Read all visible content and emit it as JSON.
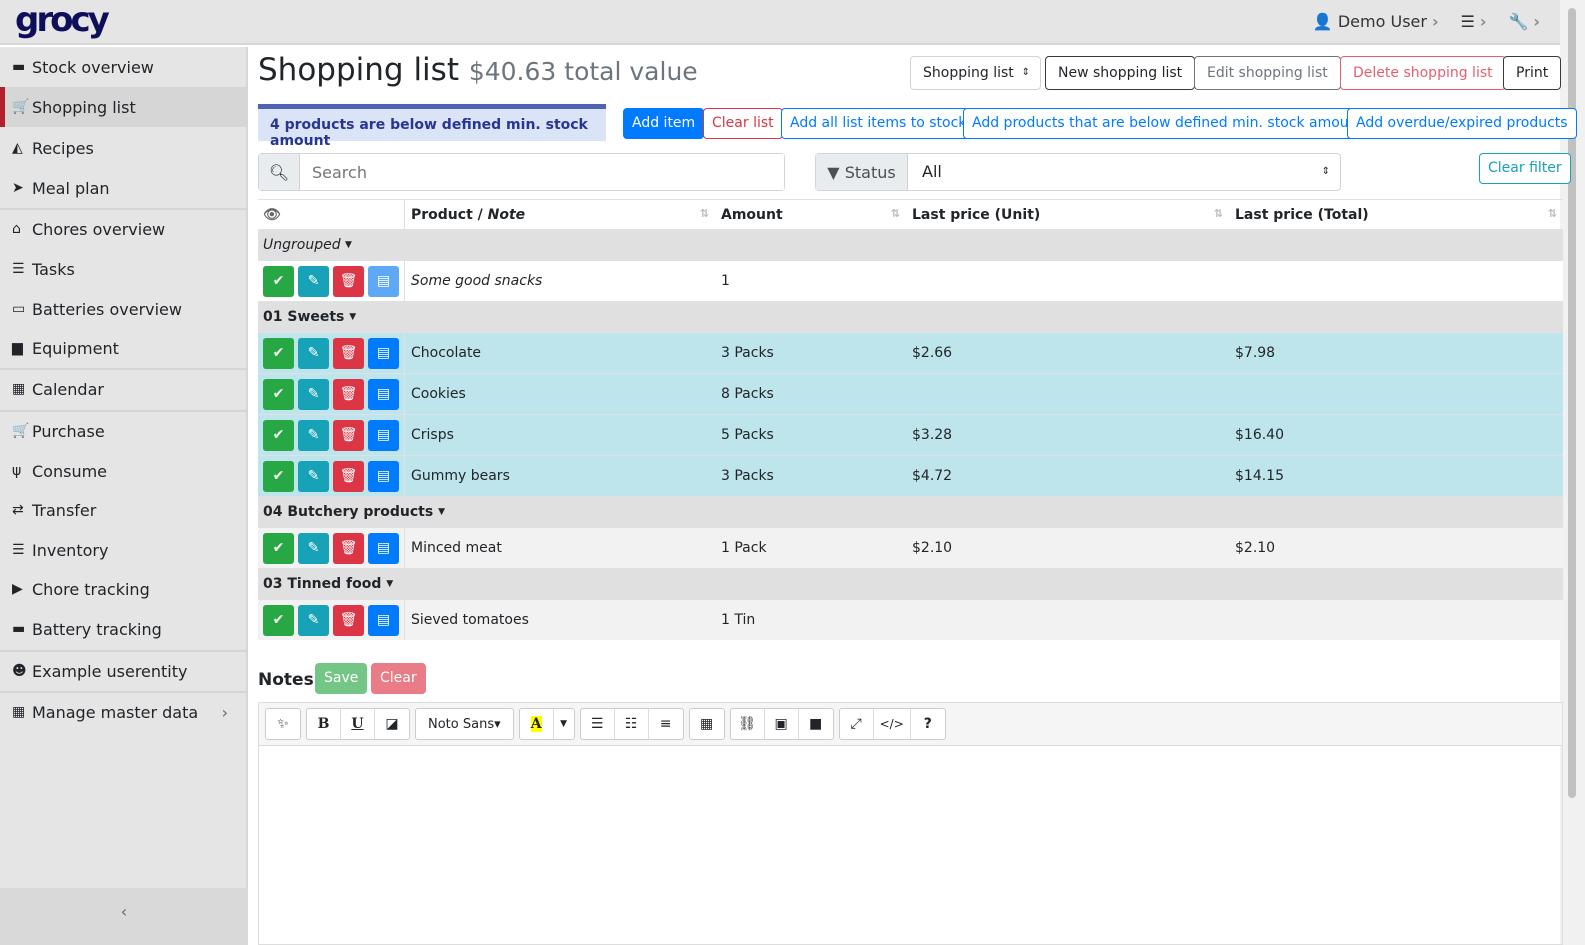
{
  "header": {
    "logo": "grocy",
    "user": "Demo User",
    "settings_icon": "sliders-icon",
    "tools_icon": "wrench-icon"
  },
  "sidebar": {
    "items": [
      {
        "label": "Stock overview",
        "icon": "box-icon",
        "glyph": "▬"
      },
      {
        "label": "Shopping list",
        "icon": "cart-icon",
        "glyph": "🛒",
        "active": true
      },
      {
        "label": "Recipes",
        "icon": "pizza-icon",
        "glyph": "◭"
      },
      {
        "label": "Meal plan",
        "icon": "paper-plane-icon",
        "glyph": "➤"
      },
      {
        "label": "Chores overview",
        "icon": "home-icon",
        "glyph": "⌂"
      },
      {
        "label": "Tasks",
        "icon": "tasks-icon",
        "glyph": "☰"
      },
      {
        "label": "Batteries overview",
        "icon": "battery-icon",
        "glyph": "▭"
      },
      {
        "label": "Equipment",
        "icon": "toolbox-icon",
        "glyph": "▆"
      },
      {
        "label": "Calendar",
        "icon": "calendar-icon",
        "glyph": "▦"
      },
      {
        "label": "Purchase",
        "icon": "cart-plus-icon",
        "glyph": "🛒"
      },
      {
        "label": "Consume",
        "icon": "utensils-icon",
        "glyph": "ψ"
      },
      {
        "label": "Transfer",
        "icon": "exchange-icon",
        "glyph": "⇄"
      },
      {
        "label": "Inventory",
        "icon": "list-icon",
        "glyph": "☰"
      },
      {
        "label": "Chore tracking",
        "icon": "play-icon",
        "glyph": "▶"
      },
      {
        "label": "Battery tracking",
        "icon": "car-battery-icon",
        "glyph": "▬"
      },
      {
        "label": "Example userentity",
        "icon": "smile-icon",
        "glyph": "☻"
      },
      {
        "label": "Manage master data",
        "icon": "table-icon",
        "glyph": "▦",
        "chevron": "›"
      }
    ]
  },
  "page": {
    "title": "Shopping list",
    "total_value": "$40.63 total value"
  },
  "toolbar": {
    "list_select": "Shopping list",
    "new": "New shopping list",
    "edit": "Edit shopping list",
    "delete": "Delete shopping list",
    "print": "Print"
  },
  "alert": "4 products are below defined min. stock amount",
  "actions": {
    "add_item": "Add item",
    "clear_list": "Clear list",
    "add_all": "Add all list items to stock",
    "add_below_min": "Add products that are below defined min. stock amount",
    "add_overdue": "Add overdue/expired products"
  },
  "filters": {
    "search_placeholder": "Search",
    "status_label": "Status",
    "status_value": "All",
    "clear_filter": "Clear filter"
  },
  "table": {
    "columns": [
      "Product",
      "Note",
      "Amount",
      "Last price (Unit)",
      "Last price (Total)"
    ],
    "groups": [
      {
        "name": "Ungrouped",
        "italic": true,
        "rows": [
          {
            "product": "Some good snacks",
            "note": true,
            "amount": "1",
            "unit": "",
            "total": "",
            "style": "white"
          }
        ]
      },
      {
        "name": "01 Sweets",
        "rows": [
          {
            "product": "Chocolate",
            "amount": "3 Packs",
            "unit": "$2.66",
            "total": "$7.98",
            "style": "info"
          },
          {
            "product": "Cookies",
            "amount": "8 Packs",
            "unit": "",
            "total": "",
            "style": "info"
          },
          {
            "product": "Crisps",
            "amount": "5 Packs",
            "unit": "$3.28",
            "total": "$16.40",
            "style": "info"
          },
          {
            "product": "Gummy bears",
            "amount": "3 Packs",
            "unit": "$4.72",
            "total": "$14.15",
            "style": "info"
          }
        ]
      },
      {
        "name": "04 Butchery products",
        "rows": [
          {
            "product": "Minced meat",
            "amount": "1 Pack",
            "unit": "$2.10",
            "total": "$2.10",
            "style": "plain"
          }
        ]
      },
      {
        "name": "03 Tinned food",
        "rows": [
          {
            "product": "Sieved tomatoes",
            "amount": "1 Tin",
            "unit": "",
            "total": "",
            "style": "plain"
          }
        ]
      }
    ]
  },
  "notes": {
    "label": "Notes",
    "save": "Save",
    "clear": "Clear",
    "font": "Noto Sans"
  },
  "colors": {
    "success": "#28a745",
    "info": "#17a2b8",
    "danger": "#dc3545",
    "primary": "#007bff",
    "active_marker": "#b3202c"
  }
}
